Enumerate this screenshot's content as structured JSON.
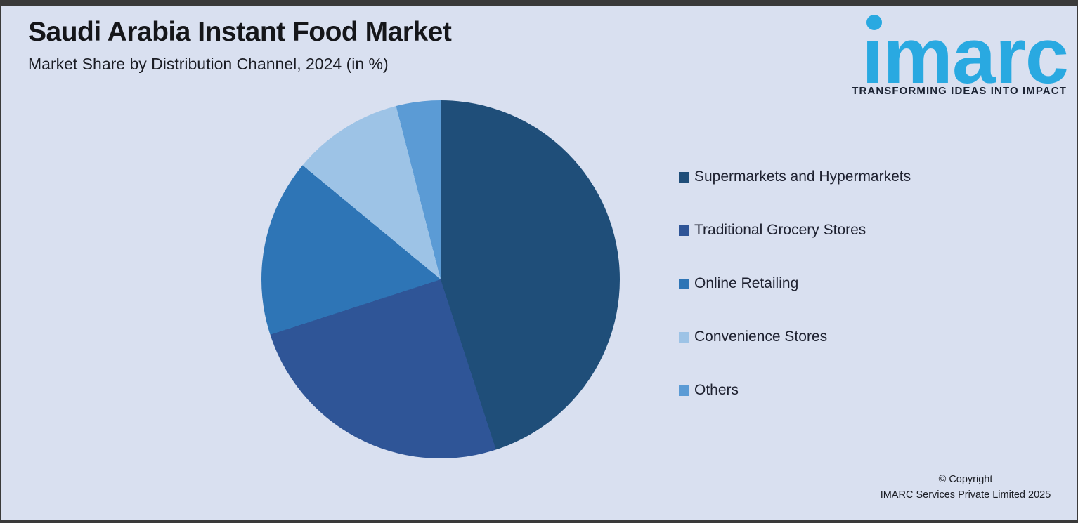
{
  "frame": {
    "background_color": "#d9e0f0",
    "border_color": "#3a3a3a"
  },
  "header": {
    "title": "Saudi Arabia Instant Food Market",
    "subtitle": "Market Share by Distribution Channel, 2024 (in %)"
  },
  "logo": {
    "wordmark": "imarc",
    "tagline": "TRANSFORMING IDEAS INTO IMPACT",
    "brand_color": "#29a9e1"
  },
  "chart_data": {
    "type": "pie",
    "title": "Saudi Arabia Instant Food Market",
    "subtitle": "Market Share by Distribution Channel, 2024 (in %)",
    "categories": [
      "Supermarkets and Hypermarkets",
      "Traditional Grocery Stores",
      "Online Retailing",
      "Convenience Stores",
      "Others"
    ],
    "values": [
      45,
      25,
      16,
      10,
      4
    ],
    "unit": "%",
    "colors": [
      "#1f4e79",
      "#2f5597",
      "#2e75b6",
      "#9dc3e6",
      "#5b9bd5"
    ],
    "start_angle_deg": 0,
    "direction": "clockwise",
    "data_labels_shown": false,
    "legend_position": "right"
  },
  "legend": {
    "items": [
      {
        "label": "Supermarkets and Hypermarkets",
        "color": "#1f4e79"
      },
      {
        "label": "Traditional Grocery Stores",
        "color": "#2f5597"
      },
      {
        "label": "Online Retailing",
        "color": "#2e75b6"
      },
      {
        "label": "Convenience Stores",
        "color": "#9dc3e6"
      },
      {
        "label": "Others",
        "color": "#5b9bd5"
      }
    ]
  },
  "footer": {
    "copyright_line1": "© Copyright",
    "copyright_line2": "IMARC Services Private Limited 2025"
  }
}
